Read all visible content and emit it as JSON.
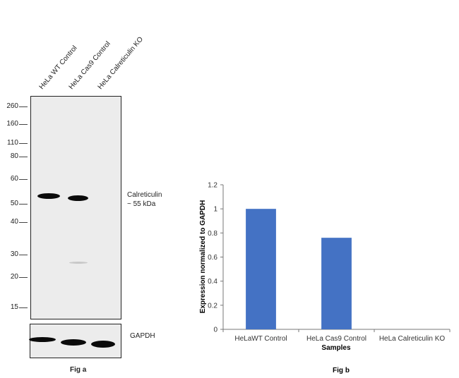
{
  "fig_a": {
    "caption": "Fig a",
    "lanes": [
      "HeLa WT Control",
      "HeLa Cas9 Control",
      "HeLa Calreticulin KO"
    ],
    "markers": [
      "260",
      "160",
      "110",
      "80",
      "60",
      "50",
      "40",
      "30",
      "20",
      "15"
    ],
    "target_label": "Calreticulin",
    "target_size": "~ 55 kDa",
    "loading_control": "GAPDH"
  },
  "chart_data": {
    "type": "bar",
    "title": "",
    "caption": "Fig b",
    "categories": [
      "HeLaWT Control",
      "HeLa Cas9 Control",
      "HeLa Calreticulin KO"
    ],
    "values": [
      1.0,
      0.76,
      0.0
    ],
    "xlabel": "Samples",
    "ylabel": "Expression normalized to GAPDH",
    "ylim": [
      0,
      1.2
    ],
    "yticks": [
      "0",
      "0.2",
      "0.4",
      "0.6",
      "0.8",
      "1",
      "1.2"
    ],
    "grid": false,
    "bar_color": "#4472c4"
  }
}
